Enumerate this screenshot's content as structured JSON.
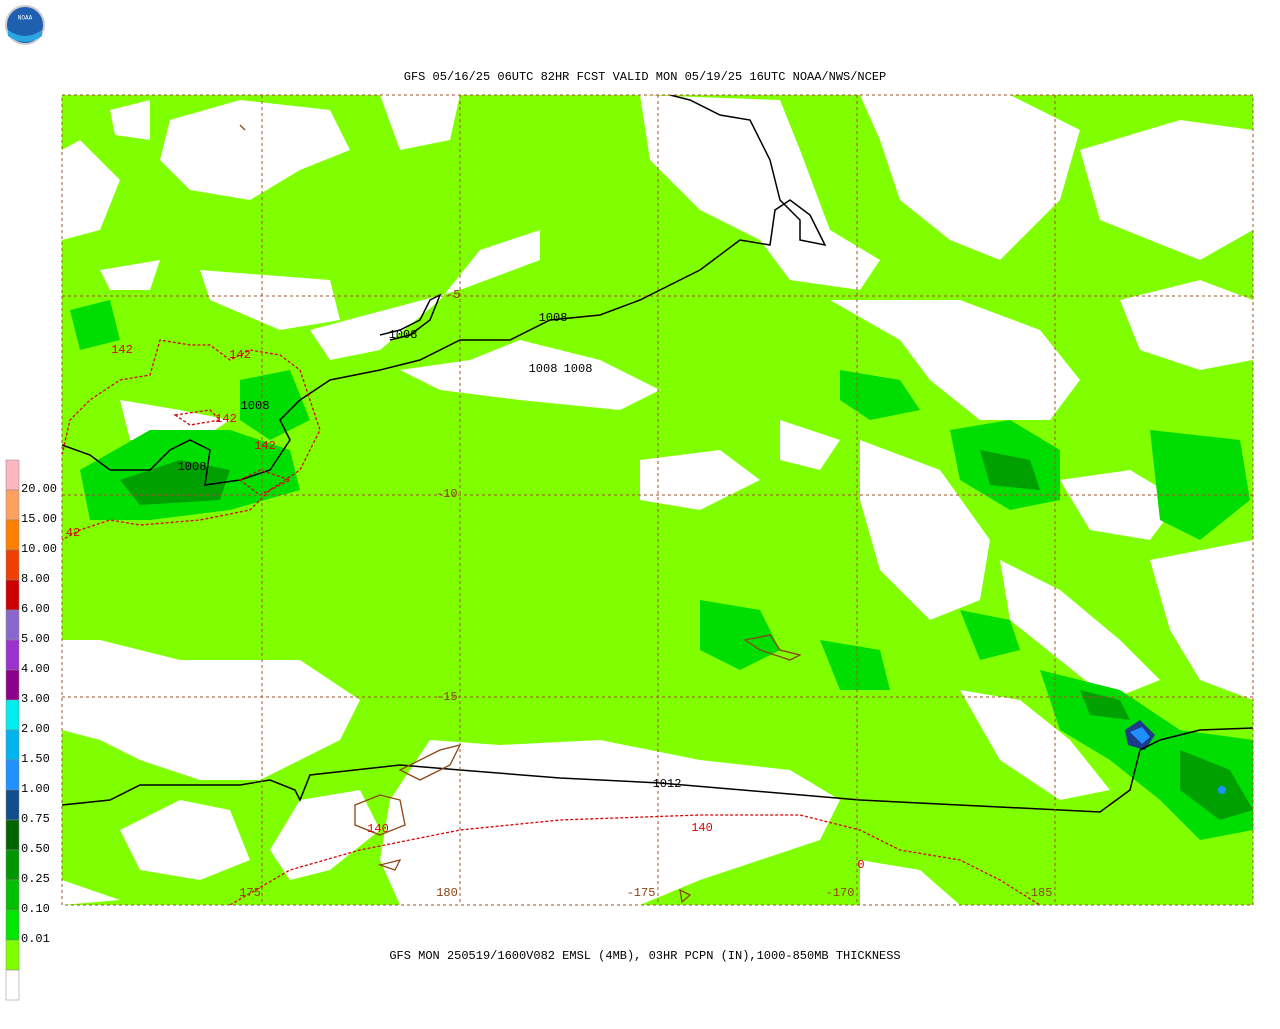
{
  "header": {
    "title": "GFS 05/16/25 06UTC 82HR FCST VALID MON 05/19/25 16UTC NOAA/NWS/NCEP"
  },
  "footer": {
    "caption": "GFS MON 250519/1600V082 EMSL (4MB), 03HR PCPN (IN),1000-850MB THICKNESS"
  },
  "logo": {
    "text": "NOAA"
  },
  "colorbar": {
    "labels": [
      "20.00",
      "15.00",
      "10.00",
      "8.00",
      "6.00",
      "5.00",
      "4.00",
      "3.00",
      "2.00",
      "1.50",
      "1.00",
      "0.75",
      "0.50",
      "0.25",
      "0.10",
      "0.01"
    ]
  },
  "map": {
    "lat_labels": [
      "-5",
      "-10",
      "-15"
    ],
    "lon_labels": [
      "175",
      "180",
      "-175",
      "-170",
      "-185"
    ],
    "pressure_labels": [
      "1008",
      "1008",
      "1008",
      "1008",
      "1008",
      "1008",
      "1012"
    ],
    "thickness_labels": [
      "142",
      "142",
      "142",
      "142",
      "42",
      "140",
      "140",
      "0"
    ]
  }
}
